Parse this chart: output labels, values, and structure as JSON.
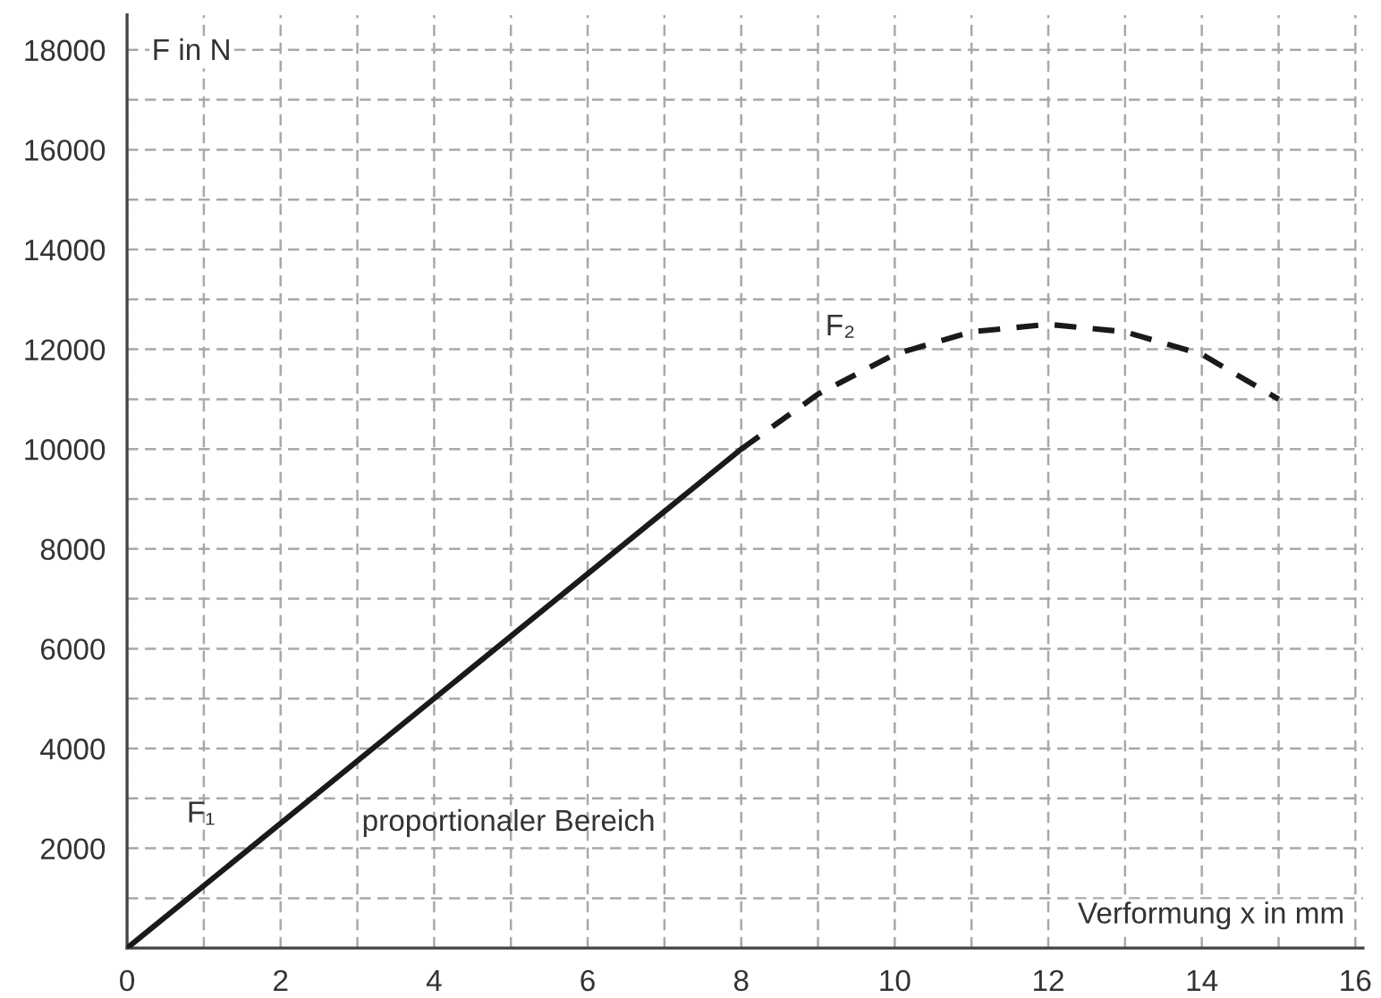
{
  "chart_data": {
    "type": "line",
    "xlabel": "Verformung x in mm",
    "ylabel": "F in N",
    "xlim": [
      0,
      16.1
    ],
    "ylim": [
      0,
      18700
    ],
    "xticks": [
      0,
      {
        "value": 1,
        "label": null
      },
      2,
      {
        "value": 3,
        "label": null
      },
      4,
      {
        "value": 5,
        "label": null
      },
      6,
      {
        "value": 7,
        "label": null
      },
      8,
      {
        "value": 9,
        "label": null
      },
      10,
      {
        "value": 11,
        "label": null
      },
      12,
      {
        "value": 13,
        "label": null
      },
      14,
      {
        "value": 15,
        "label": null
      },
      16
    ],
    "yticks": [
      {
        "value": 1000,
        "label": null
      },
      2000,
      {
        "value": 3000,
        "label": null
      },
      4000,
      {
        "value": 5000,
        "label": null
      },
      6000,
      {
        "value": 7000,
        "label": null
      },
      8000,
      {
        "value": 9000,
        "label": null
      },
      10000,
      {
        "value": 11000,
        "label": null
      },
      12000,
      {
        "value": 13000,
        "label": null
      },
      14000,
      {
        "value": 15000,
        "label": null
      },
      16000,
      {
        "value": 17000,
        "label": null
      },
      18000
    ],
    "grid": true,
    "legend": false,
    "marker": "none",
    "series": [
      {
        "color": "#1a1a1a",
        "line_style": "solid",
        "x": [
          0,
          8
        ],
        "values": [
          0,
          10000
        ]
      },
      {
        "color": "#1a1a1a",
        "line_style": "dashed",
        "x": [
          8,
          9,
          10,
          11,
          12,
          13,
          14,
          15
        ],
        "values": [
          10000,
          11100,
          11900,
          12350,
          12500,
          12350,
          11900,
          11000
        ]
      }
    ],
    "annotations": [
      {
        "text": "F₁",
        "x": 1.6,
        "y": 2000
      },
      "F₂",
      "proportionaler Bereich"
    ]
  }
}
